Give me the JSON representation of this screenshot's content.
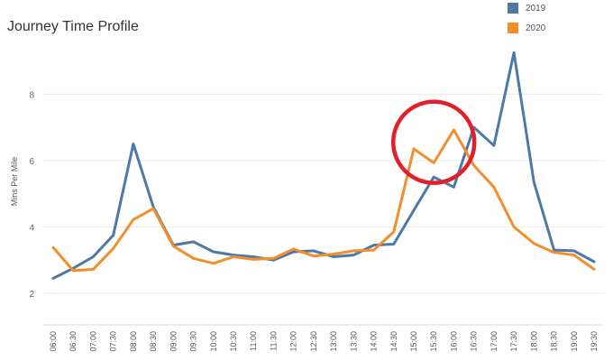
{
  "chart_data": {
    "type": "line",
    "title": "Journey Time Profile",
    "xlabel": "",
    "ylabel": "Mins Per Mile",
    "categories": [
      "06:00",
      "06:30",
      "07:00",
      "07:30",
      "08:00",
      "08:30",
      "09:00",
      "09:30",
      "10:00",
      "10:30",
      "11:00",
      "11:30",
      "12:00",
      "12:30",
      "13:00",
      "13:30",
      "14:00",
      "14:30",
      "15:00",
      "15:30",
      "16:00",
      "16:30",
      "17:00",
      "17:30",
      "18:00",
      "18:30",
      "19:00",
      "19:30"
    ],
    "yticks": [
      2,
      4,
      6,
      8
    ],
    "ylim": [
      1.1,
      9.75
    ],
    "grid": true,
    "legend_position": "top-right",
    "series": [
      {
        "name": "2019",
        "color": "#4e79a7",
        "values": [
          2.45,
          2.75,
          3.1,
          3.75,
          6.5,
          4.6,
          3.45,
          3.55,
          3.25,
          3.15,
          3.1,
          3.0,
          3.25,
          3.28,
          3.1,
          3.15,
          3.45,
          3.48,
          4.5,
          5.5,
          5.2,
          7.0,
          6.45,
          9.25,
          5.35,
          3.3,
          3.28,
          2.95
        ]
      },
      {
        "name": "2020",
        "color": "#f28e2b",
        "values": [
          3.38,
          2.68,
          2.72,
          3.35,
          4.22,
          4.55,
          3.42,
          3.05,
          2.9,
          3.1,
          3.02,
          3.05,
          3.33,
          3.12,
          3.18,
          3.28,
          3.3,
          3.85,
          6.35,
          5.93,
          6.92,
          5.85,
          5.2,
          4.0,
          3.5,
          3.23,
          3.15,
          2.72
        ]
      }
    ],
    "annotations": [
      {
        "type": "circle",
        "color": "#e0202a",
        "x_category": "15:30",
        "y_value": 6.55
      }
    ]
  }
}
